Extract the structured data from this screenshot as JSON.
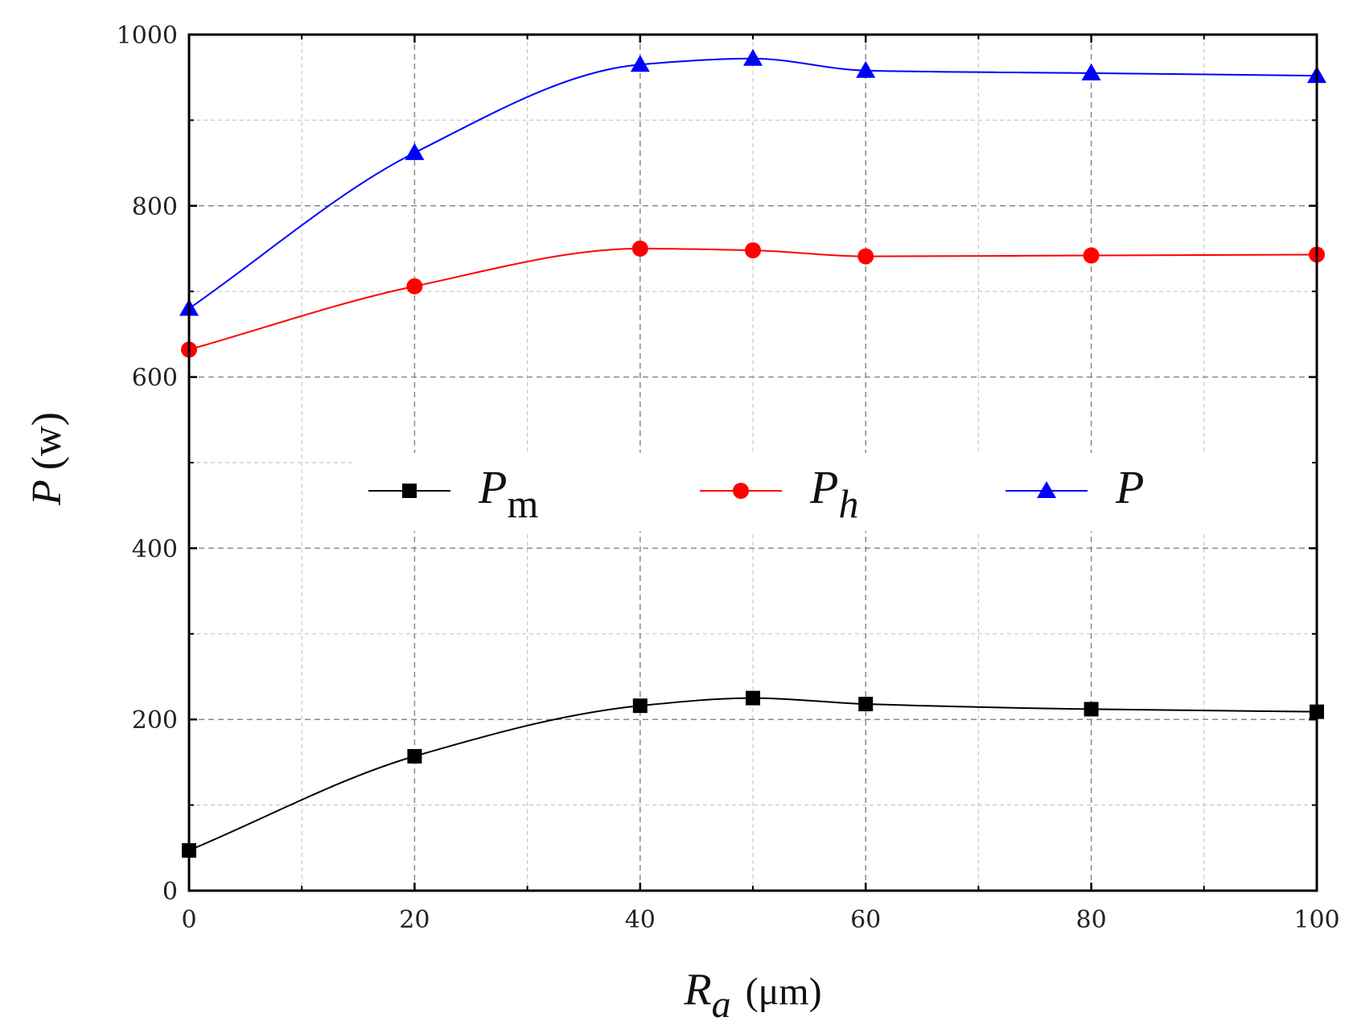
{
  "chart_data": {
    "type": "line",
    "x": [
      0,
      20,
      40,
      50,
      60,
      80,
      100
    ],
    "series": [
      {
        "name": "P_m",
        "label_main": "P",
        "label_sub": "m",
        "sub_italic": false,
        "color": "#000000",
        "marker": "square",
        "values": [
          47,
          157,
          216,
          225,
          218,
          212,
          209
        ]
      },
      {
        "name": "P_h",
        "label_main": "P",
        "label_sub": "h",
        "sub_italic": true,
        "color": "#ff0000",
        "marker": "circle",
        "values": [
          632,
          706,
          750,
          748,
          741,
          742,
          743
        ]
      },
      {
        "name": "P",
        "label_main": "P",
        "label_sub": "",
        "sub_italic": false,
        "color": "#0000ff",
        "marker": "triangle",
        "values": [
          680,
          862,
          965,
          972,
          958,
          955,
          952
        ]
      }
    ],
    "xlim": [
      0,
      100
    ],
    "ylim": [
      0,
      1000
    ],
    "x_ticks": [
      0,
      20,
      40,
      60,
      80,
      100
    ],
    "y_ticks": [
      0,
      200,
      400,
      600,
      800,
      1000
    ],
    "x_tick_labels": [
      "0",
      "20",
      "40",
      "60",
      "80",
      "100"
    ],
    "y_tick_labels": [
      "0",
      "200",
      "400",
      "600",
      "800",
      "1000"
    ],
    "xlabel_var": "R",
    "xlabel_sub": "a",
    "xlabel_unit": "(μm)",
    "ylabel_var": "P",
    "ylabel_unit": "(w)",
    "grid": true,
    "legend_position": "middle"
  }
}
